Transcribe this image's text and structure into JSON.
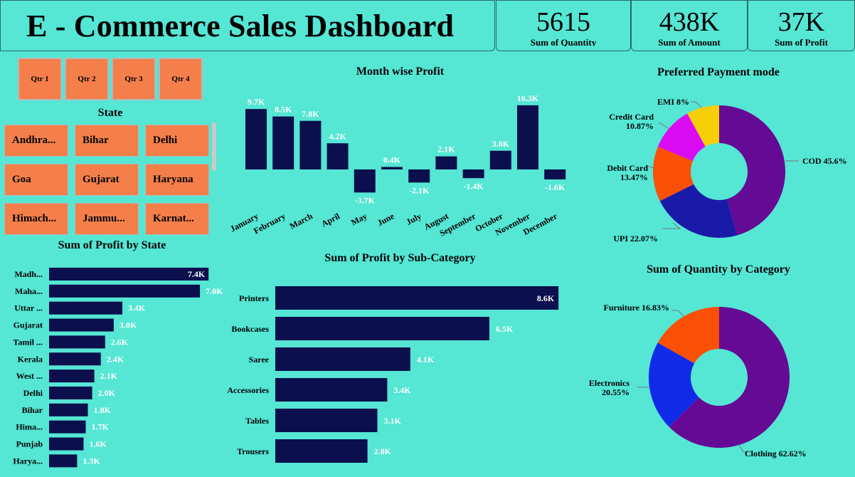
{
  "header": {
    "title": "E - Commerce Sales Dashboard"
  },
  "kpis": [
    {
      "value": "5615",
      "label": "Sum of Quantity"
    },
    {
      "value": "438K",
      "label": "Sum of Amount"
    },
    {
      "value": "37K",
      "label": "Sum of Profit"
    }
  ],
  "quarter_slicer": [
    "Qtr 1",
    "Qtr 2",
    "Qtr 3",
    "Qtr 4"
  ],
  "state_slicer": {
    "title": "State",
    "items": [
      "Andhra...",
      "Bihar",
      "Delhi",
      "Goa",
      "Gujarat",
      "Haryana",
      "Himach...",
      "Jammu...",
      "Karnat..."
    ]
  },
  "colors": {
    "background": "#55e6d4",
    "bar": "#0b0f4d",
    "slicer": "#f47f4a"
  },
  "chart_data": [
    {
      "type": "bar",
      "title": "Month wise Profit",
      "categories": [
        "January",
        "February",
        "March",
        "April",
        "May",
        "June",
        "July",
        "August",
        "September",
        "October",
        "November",
        "December"
      ],
      "values": [
        9.7,
        8.5,
        7.8,
        4.2,
        -3.7,
        0.4,
        -2.1,
        2.1,
        -1.4,
        3.0,
        10.3,
        -1.6
      ],
      "labels": [
        "9.7K",
        "8.5K",
        "7.8K",
        "4.2K",
        "-3.7K",
        "0.4K",
        "-2.1K",
        "2.1K",
        "-1.4K",
        "3.0K",
        "10.3K",
        "-1.6K"
      ],
      "unit": "K"
    },
    {
      "type": "bar",
      "orientation": "horizontal",
      "title": "Sum of Profit by State",
      "categories": [
        "Madh...",
        "Maha...",
        "Uttar ...",
        "Gujarat",
        "Tamil ...",
        "Kerala",
        "West ...",
        "Delhi",
        "Bihar",
        "Hima...",
        "Punjab",
        "Harya..."
      ],
      "values": [
        7.4,
        7.0,
        3.4,
        3.0,
        2.6,
        2.4,
        2.1,
        2.0,
        1.8,
        1.7,
        1.6,
        1.3
      ],
      "labels": [
        "7.4K",
        "7.0K",
        "3.4K",
        "3.0K",
        "2.6K",
        "2.4K",
        "2.1K",
        "2.0K",
        "1.8K",
        "1.7K",
        "1.6K",
        "1.3K"
      ]
    },
    {
      "type": "bar",
      "orientation": "horizontal",
      "title": "Sum of Profit by Sub-Category",
      "categories": [
        "Printers",
        "Bookcases",
        "Saree",
        "Accessories",
        "Tables",
        "Trousers"
      ],
      "values": [
        8.6,
        6.5,
        4.1,
        3.4,
        3.1,
        2.8
      ],
      "labels": [
        "8.6K",
        "6.5K",
        "4.1K",
        "3.4K",
        "3.1K",
        "2.8K"
      ]
    },
    {
      "type": "pie",
      "title": "Preferred Payment mode",
      "slices": [
        {
          "name": "COD",
          "value": 45.6,
          "label": "COD 45.6%",
          "color": "#650a94"
        },
        {
          "name": "UPI",
          "value": 22.07,
          "label": "UPI 22.07%",
          "color": "#1a1aa8"
        },
        {
          "name": "Debit Card",
          "value": 13.47,
          "label": "Debit Card 13.47%",
          "color": "#f95006"
        },
        {
          "name": "Credit Card",
          "value": 10.87,
          "label": "Credit Card 10.87%",
          "color": "#db0bf4"
        },
        {
          "name": "EMI",
          "value": 8.0,
          "label": "EMI 8%",
          "color": "#f7cf06"
        }
      ]
    },
    {
      "type": "pie",
      "title": "Sum of Quantity by Category",
      "slices": [
        {
          "name": "Clothing",
          "value": 62.62,
          "label": "Clothing 62.62%",
          "color": "#650a94"
        },
        {
          "name": "Electronics",
          "value": 20.55,
          "label": "Electronics 20.55%",
          "color": "#0f2be8"
        },
        {
          "name": "Furniture",
          "value": 16.83,
          "label": "Furniture 16.83%",
          "color": "#f95006"
        }
      ]
    }
  ]
}
